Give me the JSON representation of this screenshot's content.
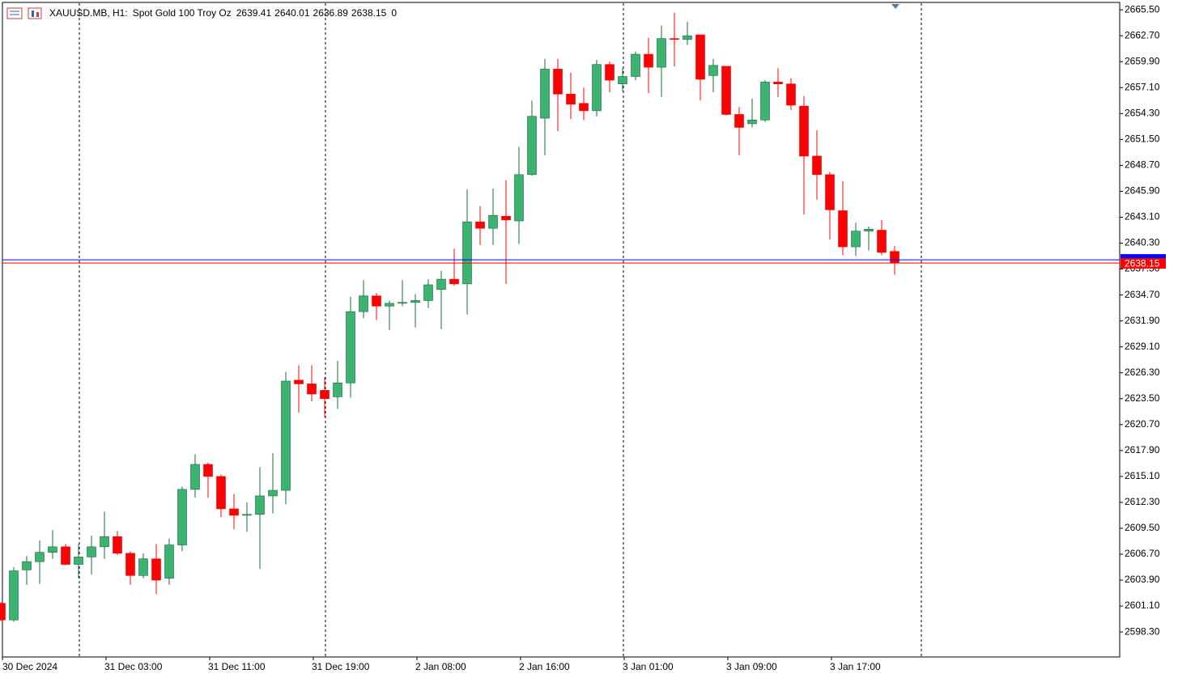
{
  "chart_data": {
    "type": "candlestick",
    "symbol": "XAUUSD.MB, H1:",
    "title": "Spot Gold 100 Troy Oz",
    "volume": 0,
    "up_color": "#3cb371",
    "up_edge": "#1a6b3c",
    "down_color": "#ff0000",
    "ask": 2638.5,
    "ask_color": "#0000ff",
    "ylim": [
      2595.6,
      2666.3
    ],
    "yticks": [
      {
        "value": 2665.5,
        "label": "2665.50"
      },
      {
        "value": 2662.7,
        "label": "2662.70"
      },
      {
        "value": 2659.9,
        "label": "2659.90"
      },
      {
        "value": 2657.1,
        "label": "2657.10"
      },
      {
        "value": 2654.3,
        "label": "2654.30"
      },
      {
        "value": 2651.5,
        "label": "2651.50"
      },
      {
        "value": 2648.7,
        "label": "2648.70"
      },
      {
        "value": 2645.9,
        "label": "2645.90"
      },
      {
        "value": 2643.1,
        "label": "2643.10"
      },
      {
        "value": 2640.3,
        "label": "2640.30"
      },
      {
        "value": 2637.5,
        "label": "2637.50"
      },
      {
        "value": 2634.7,
        "label": "2634.70"
      },
      {
        "value": 2631.9,
        "label": "2631.90"
      },
      {
        "value": 2629.1,
        "label": "2629.10"
      },
      {
        "value": 2626.3,
        "label": "2626.30"
      },
      {
        "value": 2623.5,
        "label": "2623.50"
      },
      {
        "value": 2620.7,
        "label": "2620.70"
      },
      {
        "value": 2617.9,
        "label": "2617.90"
      },
      {
        "value": 2615.1,
        "label": "2615.10"
      },
      {
        "value": 2612.3,
        "label": "2612.30"
      },
      {
        "value": 2609.5,
        "label": "2609.50"
      },
      {
        "value": 2606.7,
        "label": "2606.70"
      },
      {
        "value": 2603.9,
        "label": "2603.90"
      },
      {
        "value": 2601.1,
        "label": "2601.10"
      },
      {
        "value": 2598.3,
        "label": "2598.30"
      }
    ],
    "categories": [
      "30 Dec 2024",
      null,
      null,
      null,
      null,
      null,
      null,
      null,
      "31 Dec 03:00",
      null,
      null,
      null,
      null,
      null,
      null,
      null,
      "31 Dec 11:00",
      null,
      null,
      null,
      null,
      null,
      null,
      null,
      "31 Dec 19:00",
      null,
      null,
      null,
      null,
      null,
      null,
      null,
      "2 Jan 08:00",
      null,
      null,
      null,
      null,
      null,
      null,
      null,
      "2 Jan 16:00",
      null,
      null,
      null,
      null,
      null,
      null,
      null,
      "3 Jan 01:00",
      null,
      null,
      null,
      null,
      null,
      null,
      null,
      "3 Jan 09:00",
      null,
      null,
      null,
      null,
      null,
      null,
      null,
      "3 Jan 17:00",
      null,
      null,
      null,
      null,
      null
    ],
    "open": [
      2601.4,
      2599.6,
      2605.0,
      2605.9,
      2606.9,
      2607.5,
      2605.6,
      2606.4,
      2607.5,
      2608.6,
      2606.8,
      2604.4,
      2606.2,
      2604.1,
      2607.7,
      2613.7,
      2616.4,
      2615.1,
      2611.6,
      2610.9,
      2611.0,
      2613.0,
      2613.6,
      2625.5,
      2625.1,
      2624.4,
      2623.7,
      2625.2,
      2632.9,
      2634.6,
      2633.5,
      2633.8,
      2633.9,
      2634.1,
      2635.3,
      2636.4,
      2635.9,
      2642.6,
      2641.9,
      2643.2,
      2642.7,
      2647.7,
      2653.8,
      2659.1,
      2656.4,
      2655.4,
      2654.6,
      2659.6,
      2657.5,
      2658.3,
      2660.7,
      2659.3,
      2662.4,
      2662.3,
      2662.8,
      2658.4,
      2659.4,
      2654.2,
      2653.2,
      2653.6,
      2657.7,
      2657.5,
      2655.1,
      2649.7,
      2647.7,
      2643.8,
      2639.9,
      2641.6,
      2641.7,
      2639.41
    ],
    "high": [
      2601.5,
      2605.3,
      2606.5,
      2608.2,
      2609.3,
      2607.8,
      2607.8,
      2608.7,
      2611.3,
      2609.2,
      2607.0,
      2606.8,
      2607.8,
      2608.4,
      2614.0,
      2617.5,
      2616.6,
      2615.3,
      2613.2,
      2612.3,
      2616.1,
      2617.6,
      2626.4,
      2627.1,
      2627.1,
      2625.8,
      2627.6,
      2634.5,
      2636.3,
      2634.9,
      2634.1,
      2636.3,
      2634.8,
      2636.4,
      2637.3,
      2639.7,
      2646.1,
      2644.3,
      2646.2,
      2647.1,
      2650.7,
      2655.7,
      2660.2,
      2660.2,
      2658.7,
      2657.1,
      2660.1,
      2659.9,
      2659.2,
      2661.0,
      2662.5,
      2663.8,
      2665.2,
      2664.2,
      2662.8,
      2660.2,
      2659.4,
      2655.0,
      2655.9,
      2657.9,
      2659.2,
      2658.1,
      2656.2,
      2652.5,
      2648.0,
      2647.0,
      2642.5,
      2642.1,
      2642.8,
      2640.01
    ],
    "low": [
      2599.5,
      2599.4,
      2603.4,
      2603.5,
      2606.2,
      2605.5,
      2604.1,
      2604.5,
      2606.2,
      2606.6,
      2603.4,
      2604.1,
      2602.4,
      2603.4,
      2607.0,
      2612.8,
      2612.8,
      2610.7,
      2609.4,
      2609.1,
      2605.1,
      2611.1,
      2612.1,
      2622.0,
      2623.2,
      2621.5,
      2622.4,
      2623.6,
      2632.2,
      2632.0,
      2630.9,
      2633.5,
      2631.2,
      2633.3,
      2631.0,
      2635.7,
      2632.6,
      2640.1,
      2640.1,
      2635.9,
      2640.2,
      2647.6,
      2649.8,
      2652.4,
      2653.7,
      2653.6,
      2654.0,
      2656.6,
      2656.7,
      2657.9,
      2656.5,
      2656.1,
      2659.4,
      2661.7,
      2655.7,
      2656.6,
      2654.1,
      2649.8,
      2652.8,
      2653.4,
      2656.1,
      2654.7,
      2643.4,
      2645.0,
      2640.7,
      2639.0,
      2638.9,
      2639.5,
      2639.0,
      2636.89
    ],
    "close": [
      2599.6,
      2604.9,
      2605.9,
      2606.9,
      2607.5,
      2605.6,
      2606.4,
      2607.5,
      2608.6,
      2606.8,
      2604.4,
      2606.2,
      2603.9,
      2607.7,
      2613.7,
      2616.4,
      2615.1,
      2611.6,
      2610.9,
      2611.0,
      2613.0,
      2613.6,
      2625.4,
      2625.1,
      2624.0,
      2623.5,
      2625.2,
      2632.9,
      2634.6,
      2633.5,
      2633.8,
      2633.9,
      2634.1,
      2635.8,
      2636.4,
      2635.9,
      2642.6,
      2641.9,
      2643.3,
      2642.8,
      2647.7,
      2654.0,
      2659.1,
      2656.4,
      2655.3,
      2654.6,
      2659.6,
      2657.9,
      2658.3,
      2660.7,
      2659.3,
      2662.4,
      2662.3,
      2662.7,
      2658.0,
      2659.5,
      2654.2,
      2652.8,
      2653.6,
      2657.7,
      2657.5,
      2655.2,
      2649.7,
      2647.7,
      2643.9,
      2639.9,
      2641.6,
      2641.8,
      2639.3,
      2638.15
    ]
  }
}
